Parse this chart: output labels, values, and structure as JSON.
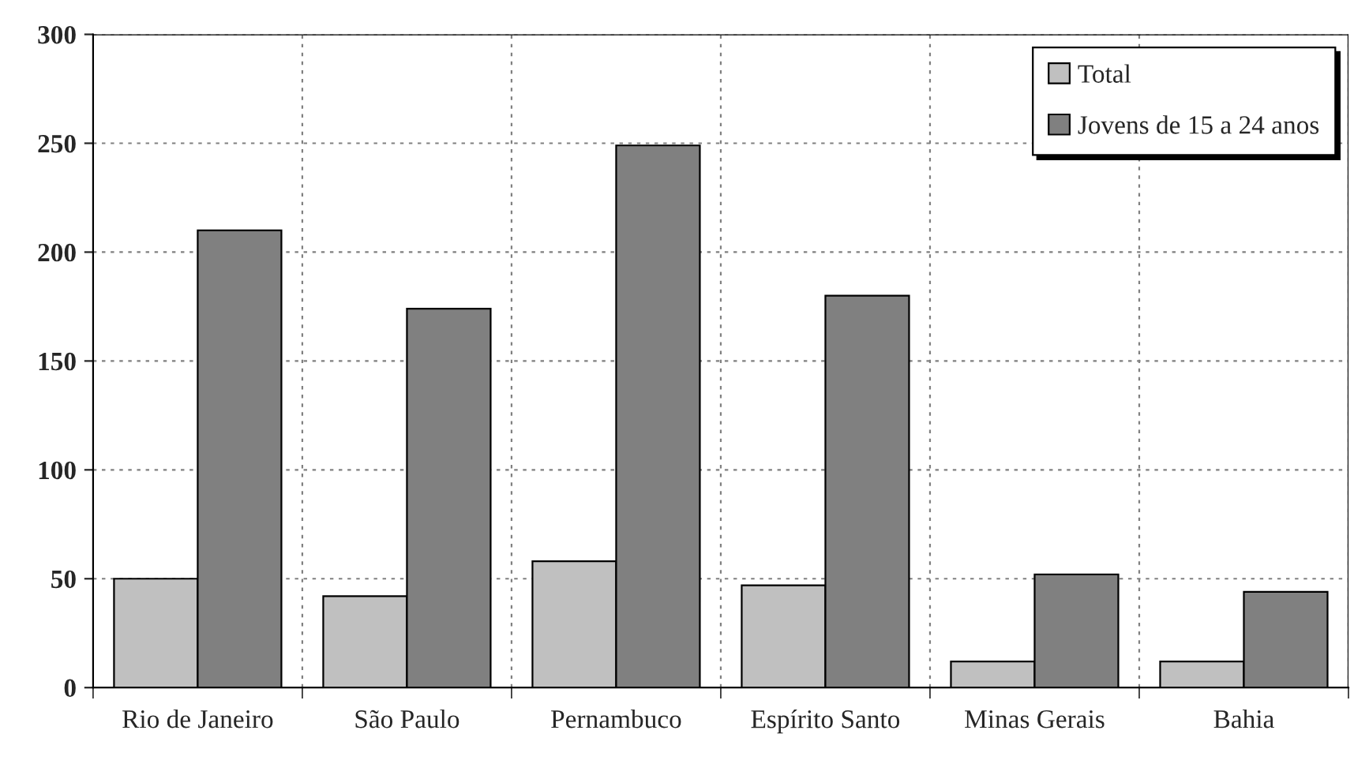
{
  "chart_data": {
    "type": "bar",
    "categories": [
      "Rio de Janeiro",
      "São Paulo",
      "Pernambuco",
      "Espírito Santo",
      "Minas Gerais",
      "Bahia"
    ],
    "series": [
      {
        "name": "Total",
        "color": "#c0c0c0",
        "values": [
          50,
          42,
          58,
          47,
          12,
          12
        ]
      },
      {
        "name": "Jovens de 15 a 24 anos",
        "color": "#808080",
        "values": [
          210,
          174,
          249,
          180,
          52,
          44
        ]
      }
    ],
    "ylim": [
      0,
      300
    ],
    "yticks": [
      0,
      50,
      100,
      150,
      200,
      250,
      300
    ],
    "grid": true,
    "legend": "top right"
  }
}
